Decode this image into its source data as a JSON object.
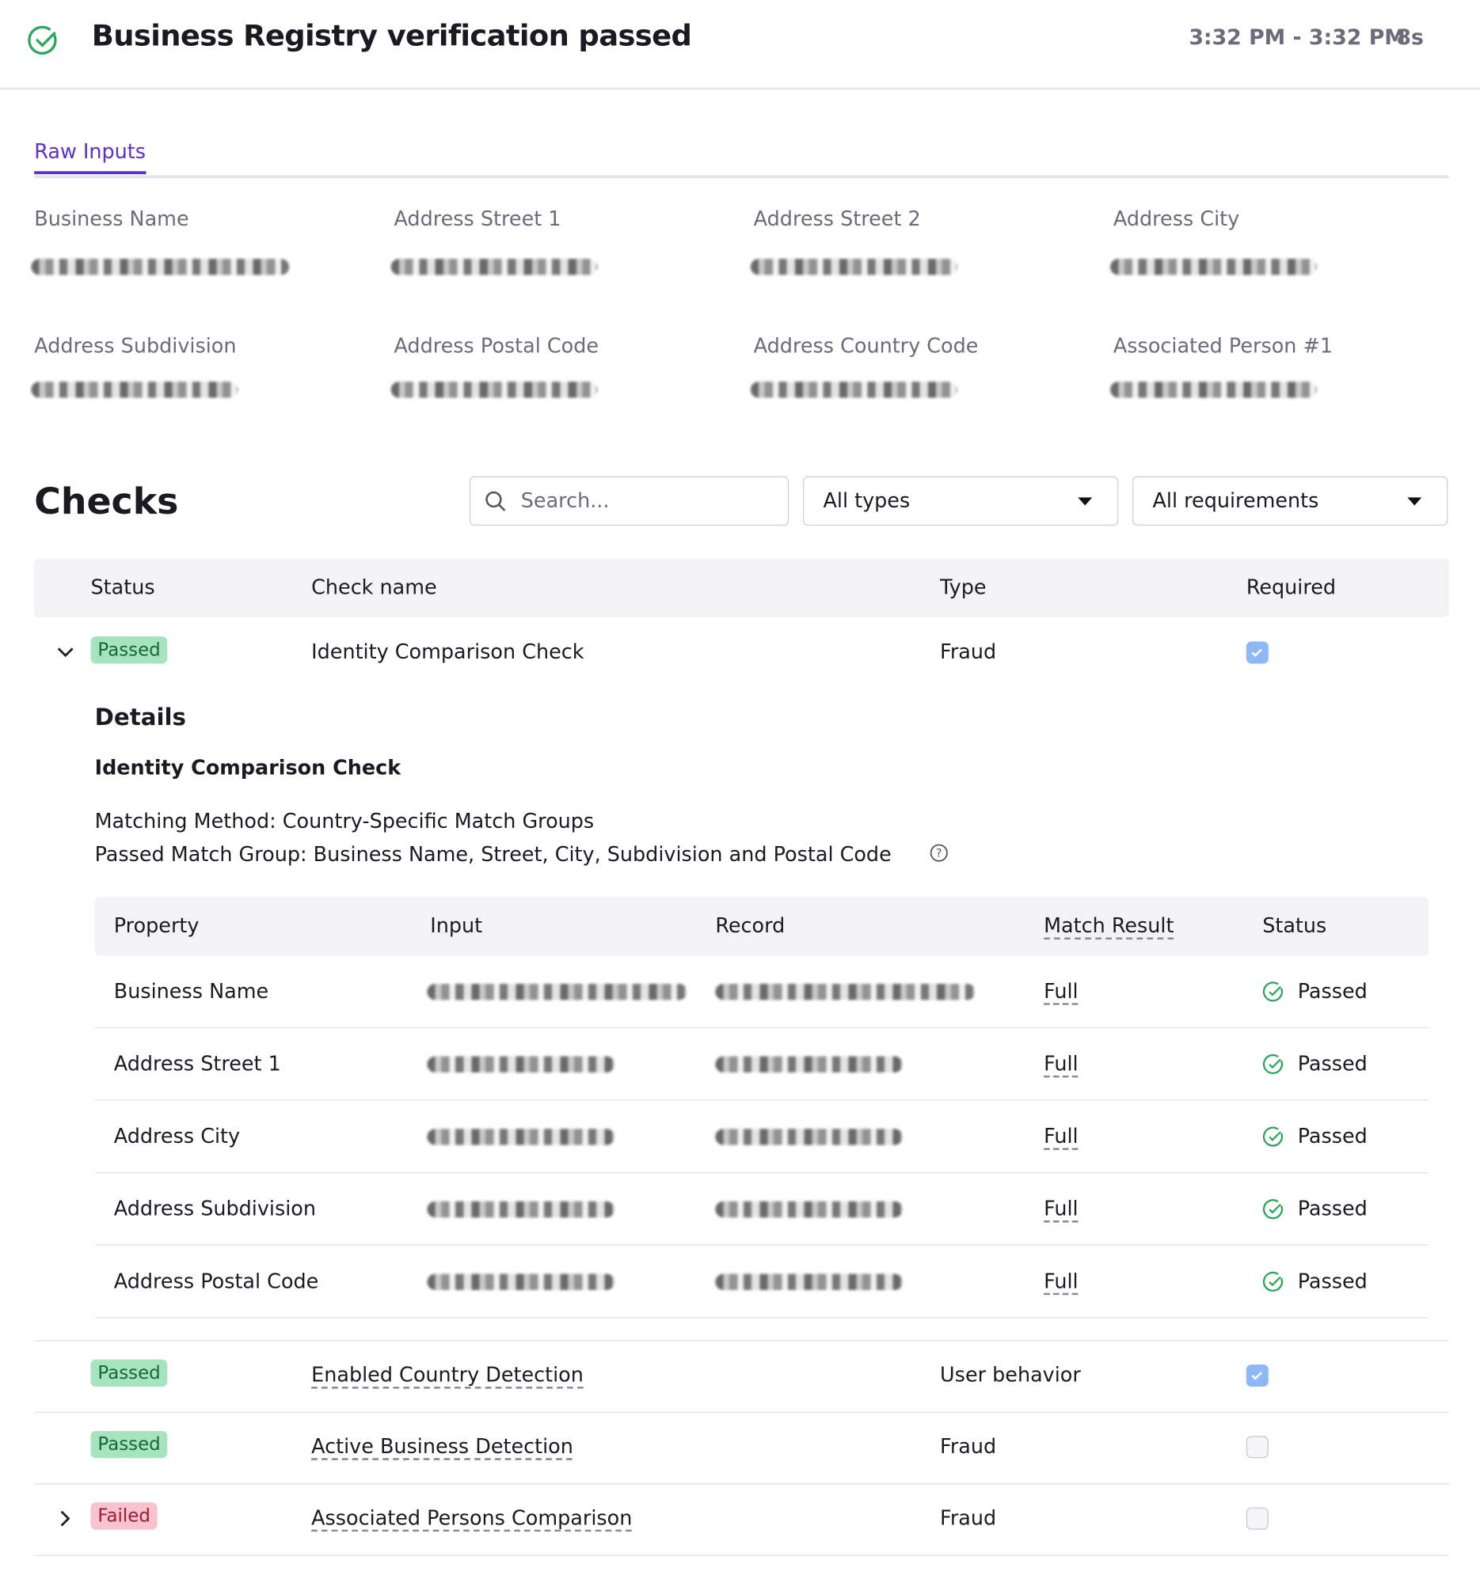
{
  "header": {
    "title": "Business Registry verification passed",
    "time_range": "3:32 PM - 3:32 PM",
    "duration": "8s"
  },
  "tabs": [
    "Raw Inputs"
  ],
  "inputs": [
    "Business Name",
    "Address Street 1",
    "Address Street 2",
    "Address City",
    "Address Subdivision",
    "Address Postal Code",
    "Address Country Code",
    "Associated Person #1"
  ],
  "checks": {
    "title": "Checks",
    "search_placeholder": "Search...",
    "filters": [
      "All types",
      "All requirements"
    ],
    "columns": [
      "Status",
      "Check name",
      "Type",
      "Required"
    ],
    "rows": [
      {
        "status": "Passed",
        "color": "#a6e3bf",
        "name": "Identity Comparison Check",
        "type": "Fraud",
        "required": true
      },
      {
        "status": "Passed",
        "color": "#a6e3bf",
        "name": "Enabled Country Detection",
        "type": "User behavior",
        "required": true
      },
      {
        "status": "Passed",
        "color": "#a6e3bf",
        "name": "Active Business Detection",
        "type": "Fraud",
        "required": false
      },
      {
        "status": "Failed",
        "color": "#f8c3cf",
        "name": "Associated Persons Comparison",
        "type": "Fraud",
        "required": false
      }
    ]
  },
  "details": {
    "title": "Details",
    "subtitle": "Identity Comparison Check",
    "lines": [
      "Matching Method: Country-Specific Match Groups",
      "Passed Match Group: Business Name, Street, City, Subdivision and Postal Code"
    ],
    "columns": [
      "Property",
      "Input",
      "Record",
      "Match Result",
      "Status"
    ],
    "rows": [
      [
        "Business Name",
        "Full",
        "Passed"
      ],
      [
        "Address Street 1",
        "Full",
        "Passed"
      ],
      [
        "Address City",
        "Full",
        "Passed"
      ],
      [
        "Address Subdivision",
        "Full",
        "Passed"
      ],
      [
        "Address Postal Code",
        "Full",
        "Passed"
      ]
    ]
  }
}
